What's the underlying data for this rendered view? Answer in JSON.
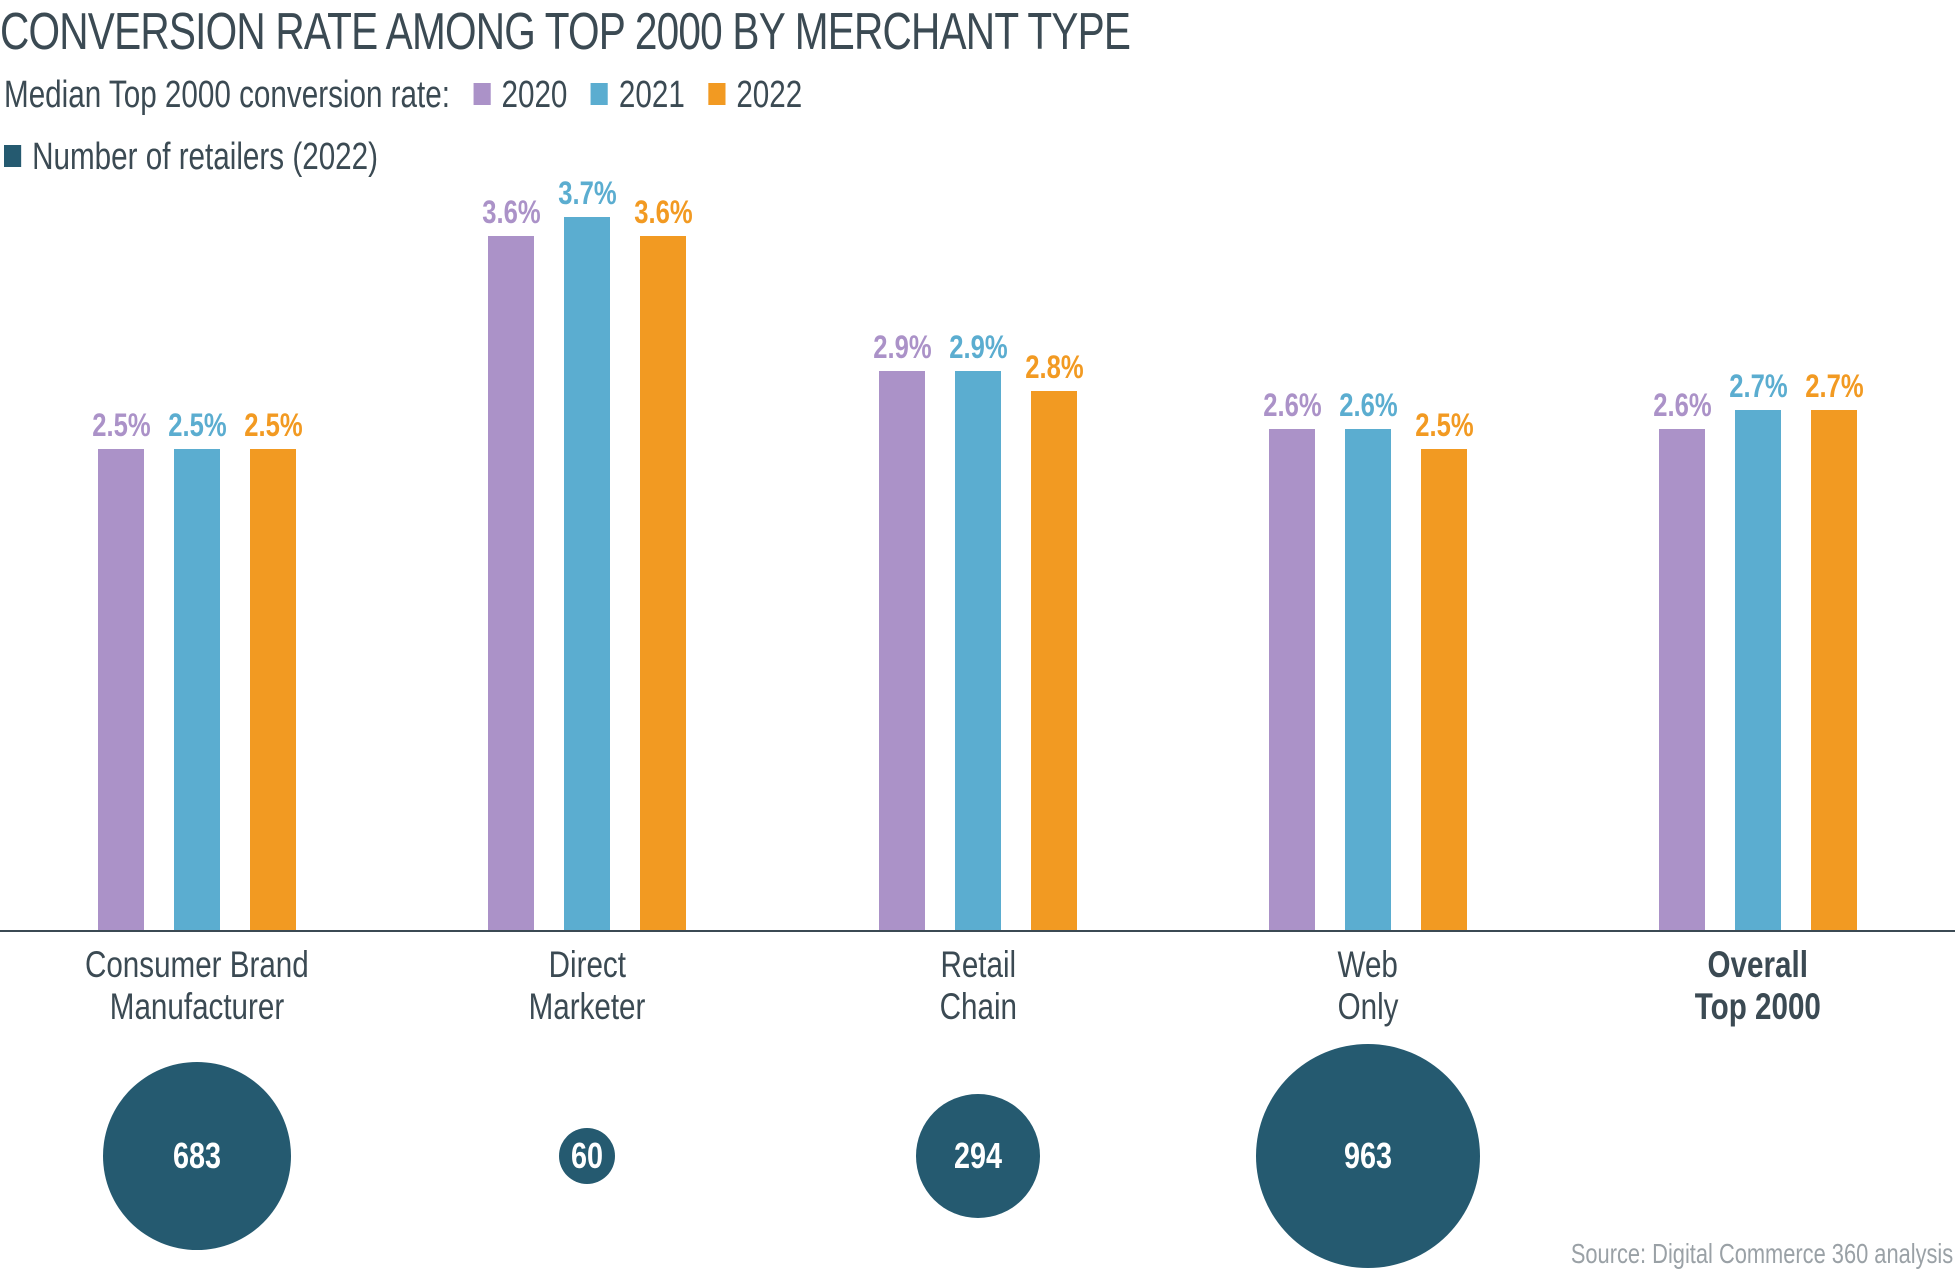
{
  "chart_data": {
    "type": "bar",
    "title": "CONVERSION RATE AMONG TOP 2000 BY MERCHANT TYPE",
    "legend_label": "Median Top 2000 conversion rate:",
    "categories": [
      [
        "Consumer Brand",
        "Manufacturer"
      ],
      [
        "Direct",
        "Marketer"
      ],
      [
        "Retail",
        "Chain"
      ],
      [
        "Web",
        "Only"
      ],
      [
        "Overall",
        "Top 2000"
      ]
    ],
    "series": [
      {
        "name": "2020",
        "color": "#ab92c8",
        "values": [
          2.5,
          3.6,
          2.9,
          2.6,
          2.6
        ],
        "labels": [
          "2.5%",
          "3.6%",
          "2.9%",
          "2.6%",
          "2.6%"
        ]
      },
      {
        "name": "2021",
        "color": "#5badd0",
        "values": [
          2.5,
          3.7,
          2.9,
          2.6,
          2.7
        ],
        "labels": [
          "2.5%",
          "3.7%",
          "2.9%",
          "2.6%",
          "2.7%"
        ]
      },
      {
        "name": "2022",
        "color": "#f29a22",
        "values": [
          2.5,
          3.6,
          2.8,
          2.5,
          2.7
        ],
        "labels": [
          "2.5%",
          "3.6%",
          "2.8%",
          "2.5%",
          "2.7%"
        ]
      }
    ],
    "retailers": {
      "label": "Number of retailers (2022)",
      "color": "#255a70",
      "values": [
        683,
        60,
        294,
        963,
        null
      ],
      "labels": [
        "683",
        "60",
        "294",
        "963",
        null
      ]
    },
    "ylim": [
      0,
      3.7
    ],
    "source": "Source:  Digital Commerce 360 analysis"
  }
}
